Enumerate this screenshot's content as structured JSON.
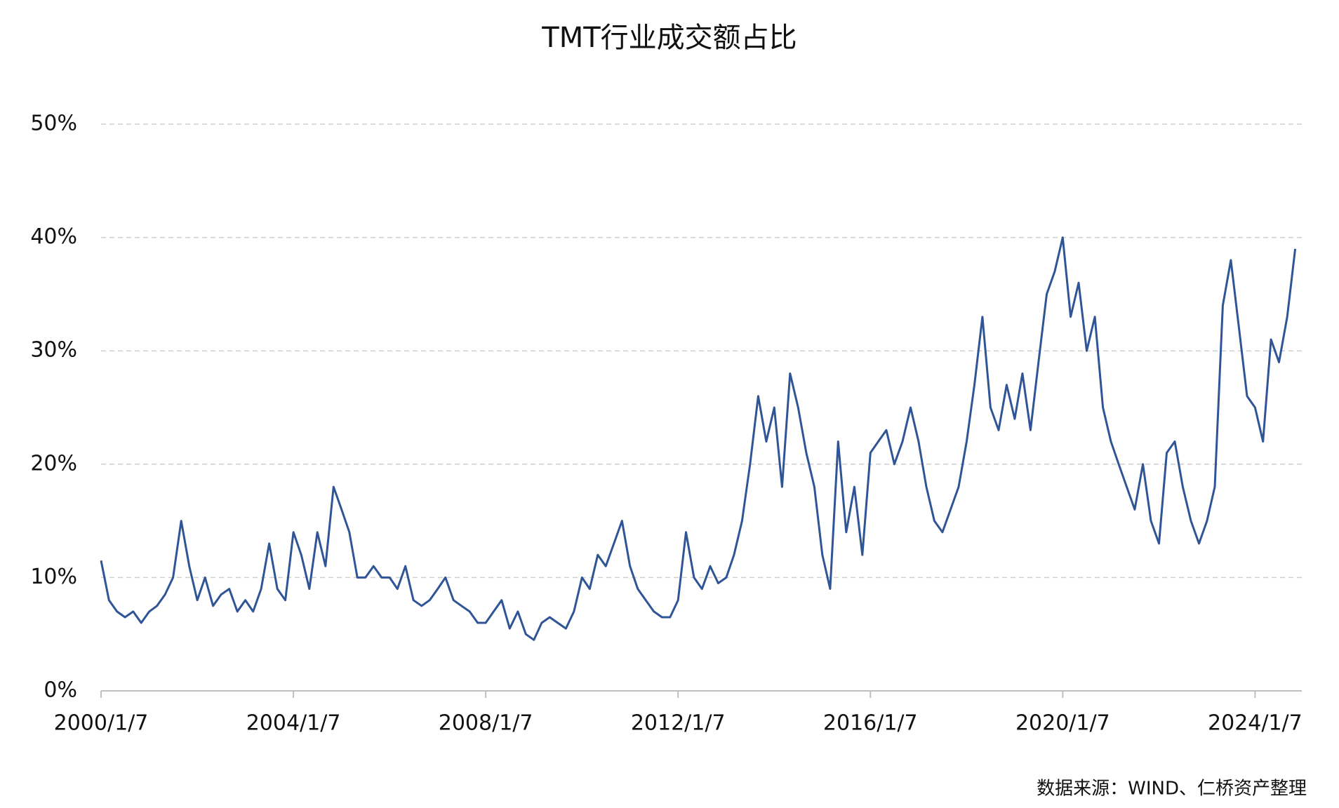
{
  "chart_data": {
    "type": "line",
    "title": "TMT行业成交额占比",
    "source": "数据来源：WIND、仁桥资产整理",
    "x": [
      "2000/1/7",
      "2000/3/7",
      "2000/5/7",
      "2000/7/7",
      "2000/9/7",
      "2000/11/7",
      "2001/1/7",
      "2001/3/7",
      "2001/5/7",
      "2001/7/7",
      "2001/9/7",
      "2001/11/7",
      "2002/1/7",
      "2002/3/7",
      "2002/5/7",
      "2002/7/7",
      "2002/9/7",
      "2002/11/7",
      "2003/1/7",
      "2003/3/7",
      "2003/5/7",
      "2003/7/7",
      "2003/9/7",
      "2003/11/7",
      "2004/1/7",
      "2004/3/7",
      "2004/5/7",
      "2004/7/7",
      "2004/9/7",
      "2004/11/7",
      "2005/1/7",
      "2005/3/7",
      "2005/5/7",
      "2005/7/7",
      "2005/9/7",
      "2005/11/7",
      "2006/1/7",
      "2006/3/7",
      "2006/5/7",
      "2006/7/7",
      "2006/9/7",
      "2006/11/7",
      "2007/1/7",
      "2007/3/7",
      "2007/5/7",
      "2007/7/7",
      "2007/9/7",
      "2007/11/7",
      "2008/1/7",
      "2008/3/7",
      "2008/5/7",
      "2008/7/7",
      "2008/9/7",
      "2008/11/7",
      "2009/1/7",
      "2009/3/7",
      "2009/5/7",
      "2009/7/7",
      "2009/9/7",
      "2009/11/7",
      "2010/1/7",
      "2010/3/7",
      "2010/5/7",
      "2010/7/7",
      "2010/9/7",
      "2010/11/7",
      "2011/1/7",
      "2011/3/7",
      "2011/5/7",
      "2011/7/7",
      "2011/9/7",
      "2011/11/7",
      "2012/1/7",
      "2012/3/7",
      "2012/5/7",
      "2012/7/7",
      "2012/9/7",
      "2012/11/7",
      "2013/1/7",
      "2013/3/7",
      "2013/5/7",
      "2013/7/7",
      "2013/9/7",
      "2013/11/7",
      "2014/1/7",
      "2014/3/7",
      "2014/5/7",
      "2014/7/7",
      "2014/9/7",
      "2014/11/7",
      "2015/1/7",
      "2015/3/7",
      "2015/5/7",
      "2015/7/7",
      "2015/9/7",
      "2015/11/7",
      "2016/1/7",
      "2016/3/7",
      "2016/5/7",
      "2016/7/7",
      "2016/9/7",
      "2016/11/7",
      "2017/1/7",
      "2017/3/7",
      "2017/5/7",
      "2017/7/7",
      "2017/9/7",
      "2017/11/7",
      "2018/1/7",
      "2018/3/7",
      "2018/5/7",
      "2018/7/7",
      "2018/9/7",
      "2018/11/7",
      "2019/1/7",
      "2019/3/7",
      "2019/5/7",
      "2019/7/7",
      "2019/9/7",
      "2019/11/7",
      "2020/1/7",
      "2020/3/7",
      "2020/5/7",
      "2020/7/7",
      "2020/9/7",
      "2020/11/7",
      "2021/1/7",
      "2021/3/7",
      "2021/5/7",
      "2021/7/7",
      "2021/9/7",
      "2021/11/7",
      "2022/1/7",
      "2022/3/7",
      "2022/5/7",
      "2022/7/7",
      "2022/9/7",
      "2022/11/7",
      "2023/1/7",
      "2023/3/7",
      "2023/5/7",
      "2023/7/7",
      "2023/9/7",
      "2023/11/7",
      "2024/1/7",
      "2024/3/7",
      "2024/5/7",
      "2024/7/7",
      "2024/9/7",
      "2024/11/7"
    ],
    "series": [
      {
        "name": "TMT行业成交额占比",
        "color": "#2f5597",
        "values": [
          11.5,
          8,
          7,
          6.5,
          7,
          6,
          7,
          7.5,
          8.5,
          10,
          15,
          11,
          8,
          10,
          7.5,
          8.5,
          9,
          7,
          8,
          7,
          9,
          13,
          9,
          8,
          14,
          12,
          9,
          14,
          11,
          18,
          16,
          14,
          10,
          10,
          11,
          10,
          10,
          9,
          11,
          8,
          7.5,
          8,
          9,
          10,
          8,
          7.5,
          7,
          6,
          6,
          7,
          8,
          5.5,
          7,
          5,
          4.5,
          6,
          6.5,
          6,
          5.5,
          7,
          10,
          9,
          12,
          11,
          13,
          15,
          11,
          9,
          8,
          7,
          6.5,
          6.5,
          8,
          14,
          10,
          9,
          11,
          9.5,
          10,
          12,
          15,
          20,
          26,
          22,
          25,
          18,
          28,
          25,
          21,
          18,
          12,
          9,
          22,
          14,
          18,
          12,
          21,
          22,
          23,
          20,
          22,
          25,
          22,
          18,
          15,
          14,
          16,
          18,
          22,
          27,
          33,
          25,
          23,
          27,
          24,
          28,
          23,
          29,
          35,
          37,
          40,
          33,
          36,
          30,
          33,
          25,
          22,
          20,
          18,
          16,
          20,
          15,
          13,
          21,
          22,
          18,
          15,
          13,
          15,
          18,
          34,
          38,
          32,
          26,
          25,
          22,
          31,
          29,
          33,
          39
        ]
      }
    ],
    "xlim": [
      "2000/1/7",
      "2024/12/27"
    ],
    "xticks": [
      "2000/1/7",
      "2004/1/7",
      "2008/1/7",
      "2012/1/7",
      "2016/1/7",
      "2020/1/7",
      "2024/1/7"
    ],
    "ylim": [
      0,
      50
    ],
    "yticks": [
      {
        "value": 0,
        "label": "0%"
      },
      {
        "value": 10,
        "label": "10%"
      },
      {
        "value": 20,
        "label": "20%"
      },
      {
        "value": 30,
        "label": "30%"
      },
      {
        "value": 40,
        "label": "40%"
      },
      {
        "value": 50,
        "label": "50%"
      }
    ],
    "grid": true
  }
}
